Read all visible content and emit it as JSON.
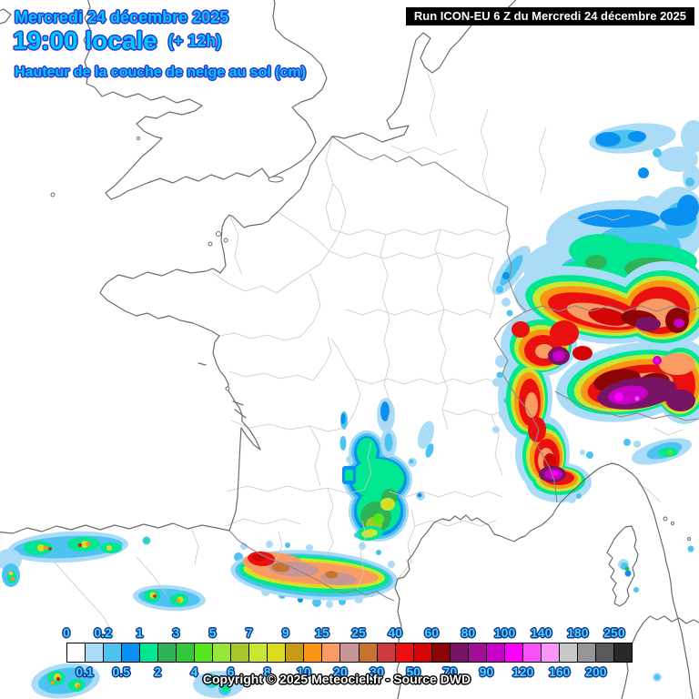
{
  "header": {
    "date": "Mercredi 24 décembre 2025",
    "time": "19:00 locale",
    "offset": "(+ 12h)",
    "subtitle": "Hauteur de la couche de neige au sol (cm)"
  },
  "run_box": {
    "label": "Run ICON-EU 6 Z du Mercredi 24 décembre 2025"
  },
  "footer": {
    "copyright": "Copyright © 2025 Meteociel.fr - Source DWD"
  },
  "colors": {
    "title_text": "#00c9ff",
    "title_outline": "#2b36d0",
    "legend_label_text": "#41d9ff",
    "legend_label_outline": "#15328f",
    "run_box_bg": "#000000",
    "run_box_text": "#ffffff"
  },
  "legend": {
    "unit": "cm",
    "boundaries": [
      {
        "value": "0",
        "row": "top"
      },
      {
        "value": "0.1",
        "row": "bottom"
      },
      {
        "value": "0.2",
        "row": "top"
      },
      {
        "value": "0.5",
        "row": "bottom"
      },
      {
        "value": "1",
        "row": "top"
      },
      {
        "value": "2",
        "row": "bottom"
      },
      {
        "value": "3",
        "row": "top"
      },
      {
        "value": "4",
        "row": "bottom"
      },
      {
        "value": "5",
        "row": "top"
      },
      {
        "value": "6",
        "row": "bottom"
      },
      {
        "value": "7",
        "row": "top"
      },
      {
        "value": "8",
        "row": "bottom"
      },
      {
        "value": "9",
        "row": "top"
      },
      {
        "value": "10",
        "row": "bottom"
      },
      {
        "value": "15",
        "row": "top"
      },
      {
        "value": "20",
        "row": "bottom"
      },
      {
        "value": "25",
        "row": "top"
      },
      {
        "value": "30",
        "row": "bottom"
      },
      {
        "value": "40",
        "row": "top"
      },
      {
        "value": "50",
        "row": "bottom"
      },
      {
        "value": "60",
        "row": "top"
      },
      {
        "value": "70",
        "row": "bottom"
      },
      {
        "value": "80",
        "row": "top"
      },
      {
        "value": "90",
        "row": "bottom"
      },
      {
        "value": "100",
        "row": "top"
      },
      {
        "value": "120",
        "row": "bottom"
      },
      {
        "value": "140",
        "row": "top"
      },
      {
        "value": "160",
        "row": "bottom"
      },
      {
        "value": "180",
        "row": "top"
      },
      {
        "value": "200",
        "row": "bottom"
      },
      {
        "value": "250",
        "row": "top"
      }
    ],
    "cells": [
      {
        "from": "0",
        "to": "0.1",
        "color": "#ffffff"
      },
      {
        "from": "0.1",
        "to": "0.2",
        "color": "#aadcf7"
      },
      {
        "from": "0.2",
        "to": "0.5",
        "color": "#4cc3f0"
      },
      {
        "from": "0.5",
        "to": "1",
        "color": "#0a90f0"
      },
      {
        "from": "1",
        "to": "2",
        "color": "#00e691"
      },
      {
        "from": "2",
        "to": "3",
        "color": "#2eb457"
      },
      {
        "from": "3",
        "to": "4",
        "color": "#33c83c"
      },
      {
        "from": "4",
        "to": "5",
        "color": "#55e61e"
      },
      {
        "from": "5",
        "to": "6",
        "color": "#96e63c"
      },
      {
        "from": "6",
        "to": "7",
        "color": "#a5c828"
      },
      {
        "from": "7",
        "to": "8",
        "color": "#c8e632"
      },
      {
        "from": "8",
        "to": "9",
        "color": "#dcdc1e"
      },
      {
        "from": "9",
        "to": "10",
        "color": "#c89b14"
      },
      {
        "from": "10",
        "to": "15",
        "color": "#fa9614"
      },
      {
        "from": "15",
        "to": "20",
        "color": "#fa9b64"
      },
      {
        "from": "20",
        "to": "25",
        "color": "#c89696"
      },
      {
        "from": "25",
        "to": "30",
        "color": "#c8732d"
      },
      {
        "from": "30",
        "to": "40",
        "color": "#cd3c3c"
      },
      {
        "from": "40",
        "to": "50",
        "color": "#ea1010"
      },
      {
        "from": "50",
        "to": "60",
        "color": "#d40505"
      },
      {
        "from": "60",
        "to": "70",
        "color": "#8c0505"
      },
      {
        "from": "70",
        "to": "80",
        "color": "#781464"
      },
      {
        "from": "80",
        "to": "90",
        "color": "#a00f96"
      },
      {
        "from": "90",
        "to": "100",
        "color": "#c800c8"
      },
      {
        "from": "100",
        "to": "120",
        "color": "#fa00fa"
      },
      {
        "from": "120",
        "to": "140",
        "color": "#fa50fa"
      },
      {
        "from": "140",
        "to": "160",
        "color": "#fa96fa"
      },
      {
        "from": "160",
        "to": "180",
        "color": "#c8c8c8"
      },
      {
        "from": "180",
        "to": "200",
        "color": "#969696"
      },
      {
        "from": "200",
        "to": "250",
        "color": "#5a5a5a"
      },
      {
        "from": "250",
        "to": "",
        "color": "#282828"
      }
    ]
  }
}
